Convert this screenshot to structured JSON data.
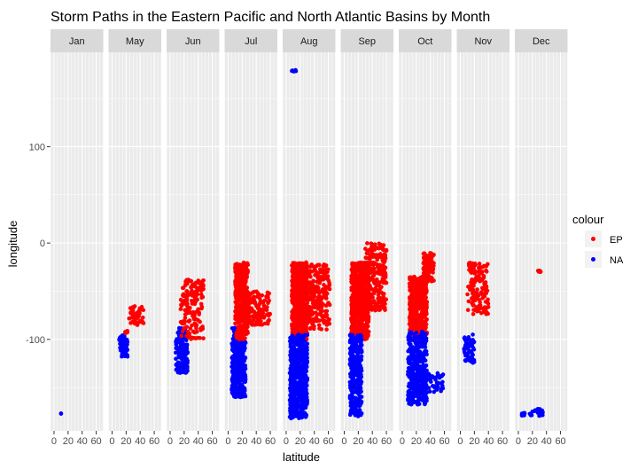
{
  "chart_data": {
    "type": "scatter",
    "title": "Storm Paths in the Eastern Pacific and North Atlantic Basins by Month",
    "xlabel": "latitude",
    "ylabel": "longitude",
    "xlim": [
      -5,
      70
    ],
    "ylim": [
      -195,
      198
    ],
    "x_ticks": [
      0,
      20,
      40,
      60
    ],
    "x_tick_labels": [
      "0",
      "20",
      "40",
      "60"
    ],
    "y_ticks": [
      100,
      0,
      -100
    ],
    "y_tick_labels": [
      "100",
      "0",
      "-100"
    ],
    "grid": true,
    "legend": {
      "title": "colour",
      "position": "right",
      "entries": [
        {
          "label": "EP",
          "color": "#ff0000"
        },
        {
          "label": "NA",
          "color": "#0000ff"
        }
      ]
    },
    "facets": [
      {
        "label": "Jan",
        "groups": [
          {
            "series": "NA",
            "clusters": [
              {
                "x": [
                  10,
                  10
                ],
                "y": [
                  -177,
                  -177
                ],
                "n": 3
              }
            ]
          }
        ]
      },
      {
        "label": "May",
        "groups": [
          {
            "series": "NA",
            "clusters": [
              {
                "x": [
                  10,
                  22
                ],
                "y": [
                  -118,
                  -95
                ],
                "n": 60
              }
            ]
          },
          {
            "series": "EP",
            "clusters": [
              {
                "x": [
                  24,
                  45
                ],
                "y": [
                  -85,
                  -65
                ],
                "n": 45
              },
              {
                "x": [
                  18,
                  22
                ],
                "y": [
                  -95,
                  -90
                ],
                "n": 8
              }
            ]
          }
        ]
      },
      {
        "label": "Jun",
        "groups": [
          {
            "series": "NA",
            "clusters": [
              {
                "x": [
                  8,
                  25
                ],
                "y": [
                  -135,
                  -88
                ],
                "n": 170
              }
            ]
          },
          {
            "series": "EP",
            "clusters": [
              {
                "x": [
                  15,
                  48
                ],
                "y": [
                  -100,
                  -38
                ],
                "n": 160
              }
            ]
          }
        ]
      },
      {
        "label": "Jul",
        "groups": [
          {
            "series": "NA",
            "clusters": [
              {
                "x": [
                  5,
                  25
                ],
                "y": [
                  -160,
                  -88
                ],
                "n": 350
              }
            ]
          },
          {
            "series": "EP",
            "clusters": [
              {
                "x": [
                  10,
                  28
                ],
                "y": [
                  -100,
                  -20
                ],
                "n": 420
              },
              {
                "x": [
                  25,
                  60
                ],
                "y": [
                  -85,
                  -50
                ],
                "n": 150
              }
            ]
          }
        ]
      },
      {
        "label": "Aug",
        "groups": [
          {
            "series": "EP",
            "clusters": [
              {
                "x": [
                  8,
                  30
                ],
                "y": [
                  -100,
                  -20
                ],
                "n": 650
              },
              {
                "x": [
                  25,
                  62
                ],
                "y": [
                  -90,
                  -22
                ],
                "n": 250
              }
            ]
          },
          {
            "series": "NA",
            "clusters": [
              {
                "x": [
                  5,
                  30
                ],
                "y": [
                  -182,
                  -95
                ],
                "n": 520
              }
            ]
          },
          {
            "series": "NA",
            "clusters": [
              {
                "x": [
                  8,
                  14
                ],
                "y": [
                  178,
                  180
                ],
                "n": 8
              }
            ]
          }
        ]
      },
      {
        "label": "Sep",
        "groups": [
          {
            "series": "EP",
            "clusters": [
              {
                "x": [
                  10,
                  35
                ],
                "y": [
                  -100,
                  -20
                ],
                "n": 700
              },
              {
                "x": [
                  30,
                  60
                ],
                "y": [
                  -70,
                  0
                ],
                "n": 250
              }
            ]
          },
          {
            "series": "NA",
            "clusters": [
              {
                "x": [
                  8,
                  25
                ],
                "y": [
                  -180,
                  -95
                ],
                "n": 320
              }
            ]
          }
        ]
      },
      {
        "label": "Oct",
        "groups": [
          {
            "series": "EP",
            "clusters": [
              {
                "x": [
                  10,
                  35
                ],
                "y": [
                  -100,
                  -35
                ],
                "n": 450
              },
              {
                "x": [
                  30,
                  45
                ],
                "y": [
                  -40,
                  -10
                ],
                "n": 120
              }
            ]
          },
          {
            "series": "NA",
            "clusters": [
              {
                "x": [
                  8,
                  35
                ],
                "y": [
                  -168,
                  -92
                ],
                "n": 380
              },
              {
                "x": [
                  30,
                  60
                ],
                "y": [
                  -155,
                  -135
                ],
                "n": 40
              }
            ]
          }
        ]
      },
      {
        "label": "Nov",
        "groups": [
          {
            "series": "EP",
            "clusters": [
              {
                "x": [
                  10,
                  40
                ],
                "y": [
                  -75,
                  -20
                ],
                "n": 150
              }
            ]
          },
          {
            "series": "NA",
            "clusters": [
              {
                "x": [
                  5,
                  20
                ],
                "y": [
                  -125,
                  -95
                ],
                "n": 60
              }
            ]
          }
        ]
      },
      {
        "label": "Dec",
        "groups": [
          {
            "series": "EP",
            "clusters": [
              {
                "x": [
                  28,
                  32
                ],
                "y": [
                  -30,
                  -28
                ],
                "n": 12
              }
            ]
          },
          {
            "series": "NA",
            "clusters": [
              {
                "x": [
                  5,
                  9
                ],
                "y": [
                  -180,
                  -176
                ],
                "n": 12
              },
              {
                "x": [
                  15,
                  35
                ],
                "y": [
                  -180,
                  -172
                ],
                "n": 25
              }
            ]
          }
        ]
      }
    ]
  }
}
